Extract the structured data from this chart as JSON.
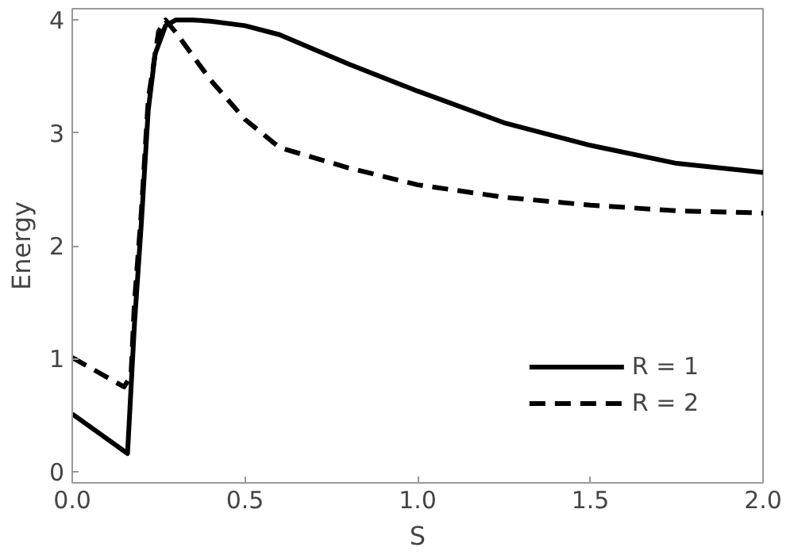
{
  "chart_data": {
    "type": "line",
    "xlabel": "S",
    "ylabel": "Energy",
    "xlim": [
      0,
      2
    ],
    "ylim": [
      -0.1,
      4.1
    ],
    "xticks": [
      {
        "value": 0,
        "label": "0.0"
      },
      0.5,
      {
        "value": 1,
        "label": "1.0"
      },
      1.5,
      {
        "value": 2,
        "label": "2.0"
      }
    ],
    "yticks": [
      0,
      1,
      2,
      3,
      4
    ],
    "legend": "bottom right",
    "grid": false,
    "marker": "none",
    "series": [
      {
        "name": "R = 1",
        "color": "#000000",
        "line_style": "solid",
        "x": [
          0,
          0.16,
          0.18,
          0.2,
          0.22,
          0.24,
          0.27,
          0.3,
          0.35,
          0.4,
          0.5,
          0.6,
          0.8,
          1.0,
          1.25,
          1.5,
          1.75,
          2.0
        ],
        "values": [
          0.51,
          0.16,
          1.3,
          2.2,
          3.2,
          3.7,
          3.95,
          4.0,
          4.0,
          3.99,
          3.95,
          3.87,
          3.61,
          3.37,
          3.09,
          2.89,
          2.73,
          2.65
        ]
      },
      {
        "name": "R = 2",
        "color": "#000000",
        "line_style": "dashed",
        "x": [
          0,
          0.15,
          0.17,
          0.18,
          0.2,
          0.22,
          0.25,
          0.27,
          0.3,
          0.4,
          0.5,
          0.6,
          0.8,
          1.0,
          1.25,
          1.5,
          1.75,
          2.0
        ],
        "values": [
          1.01,
          0.75,
          0.85,
          1.5,
          2.3,
          3.3,
          3.9,
          4.0,
          3.89,
          3.47,
          3.12,
          2.87,
          2.69,
          2.54,
          2.43,
          2.36,
          2.31,
          2.29
        ]
      }
    ]
  }
}
